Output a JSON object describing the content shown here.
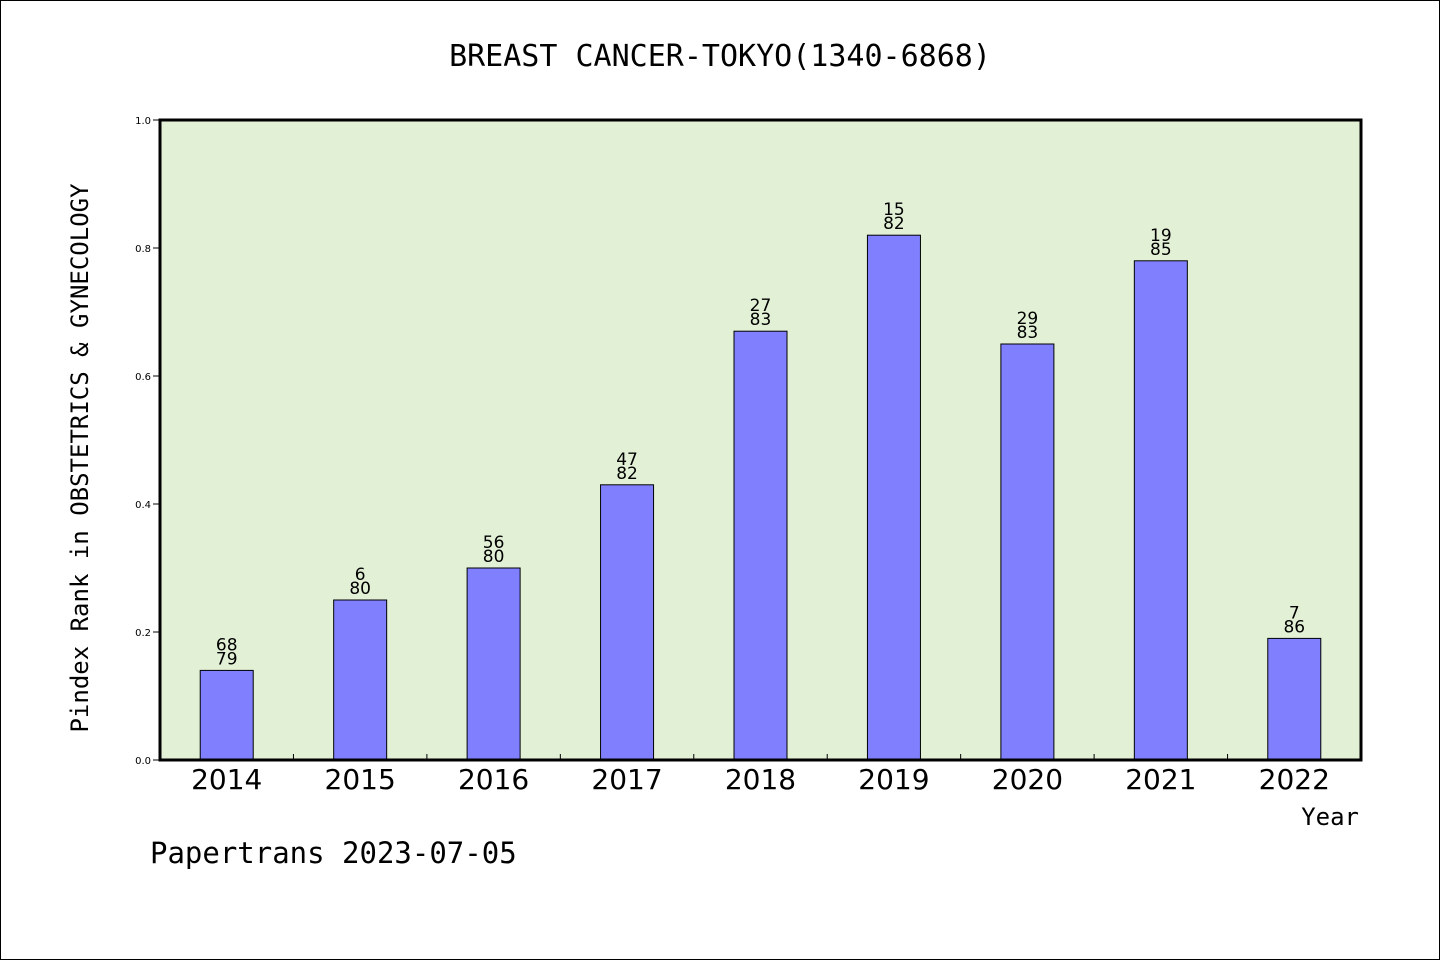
{
  "chart_data": {
    "type": "bar",
    "title": "BREAST CANCER-TOKYO(1340-6868)",
    "xlabel": "Year",
    "ylabel": "Pindex Rank in OBSTETRICS & GYNECOLOGY",
    "categories": [
      "2014",
      "2015",
      "2016",
      "2017",
      "2018",
      "2019",
      "2020",
      "2021",
      "2022"
    ],
    "values": [
      0.14,
      0.25,
      0.3,
      0.43,
      0.67,
      0.82,
      0.65,
      0.78,
      0.19
    ],
    "labels_top": [
      "68",
      "6",
      "56",
      "47",
      "27",
      "15",
      "29",
      "19",
      "7"
    ],
    "labels_bottom": [
      "79",
      "80",
      "80",
      "82",
      "83",
      "82",
      "83",
      "85",
      "86"
    ],
    "ylim": [
      0.0,
      1.0
    ],
    "yticks": [
      "0.0",
      "0.2",
      "0.4",
      "0.6",
      "0.8",
      "1.0"
    ],
    "grid": false,
    "colors": {
      "plot_background": "#e2f0d6",
      "bar_fill": "#8080ff",
      "bar_stroke": "#000000"
    }
  },
  "footer": "Papertrans 2023-07-05"
}
